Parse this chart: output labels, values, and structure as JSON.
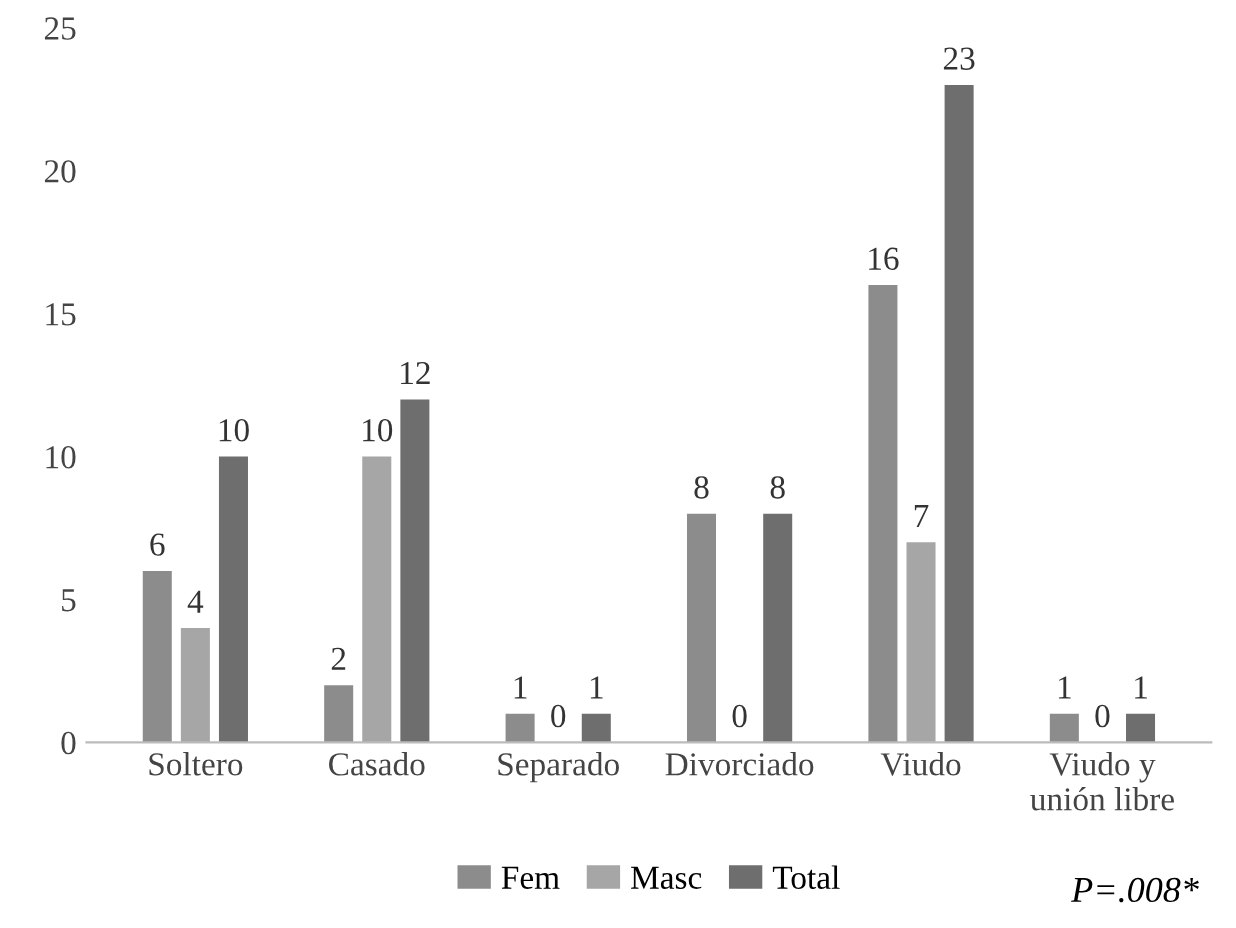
{
  "chart_data": {
    "type": "bar",
    "categories": [
      "Soltero",
      "Casado",
      "Separado",
      "Divorciado",
      "Viudo",
      "Viudo y\nunión libre"
    ],
    "series": [
      {
        "name": "Fem",
        "color": "#8c8c8c",
        "values": [
          6,
          2,
          1,
          8,
          16,
          1
        ]
      },
      {
        "name": "Masc",
        "color": "#a6a6a6",
        "values": [
          4,
          10,
          0,
          0,
          7,
          0
        ]
      },
      {
        "name": "Total",
        "color": "#6e6e6e",
        "values": [
          10,
          12,
          1,
          8,
          23,
          1
        ]
      }
    ],
    "ylim": [
      0,
      25
    ],
    "yticks": [
      0,
      5,
      10,
      15,
      20,
      25
    ],
    "grid": false,
    "legend": "bottom",
    "data_labels": true,
    "annotations": [
      "P=.008*"
    ]
  }
}
